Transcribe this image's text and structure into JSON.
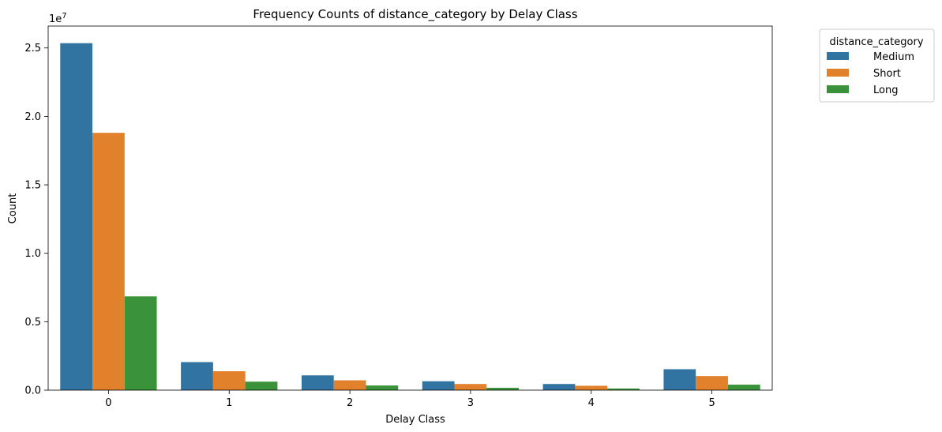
{
  "chart_data": {
    "type": "bar",
    "title": "Frequency Counts of distance_category by Delay Class",
    "xlabel": "Delay Class",
    "ylabel": "Count",
    "y_multiplier_label": "1e7",
    "categories": [
      "0",
      "1",
      "2",
      "3",
      "4",
      "5"
    ],
    "ylim": [
      0,
      26600000
    ],
    "yticks": [
      0,
      5000000,
      10000000,
      15000000,
      20000000,
      25000000
    ],
    "ytick_labels": [
      "0.0",
      "0.5",
      "1.0",
      "1.5",
      "2.0",
      "2.5"
    ],
    "legend_title": "distance_category",
    "legend_position": "outside upper right",
    "series": [
      {
        "name": "Medium",
        "color": "#3274a1",
        "values": [
          25350000,
          2050000,
          1080000,
          650000,
          450000,
          1530000
        ]
      },
      {
        "name": "Short",
        "color": "#e1812c",
        "values": [
          18800000,
          1380000,
          720000,
          450000,
          320000,
          1030000
        ]
      },
      {
        "name": "Long",
        "color": "#3a923a",
        "values": [
          6850000,
          620000,
          340000,
          170000,
          120000,
          400000
        ]
      }
    ]
  }
}
